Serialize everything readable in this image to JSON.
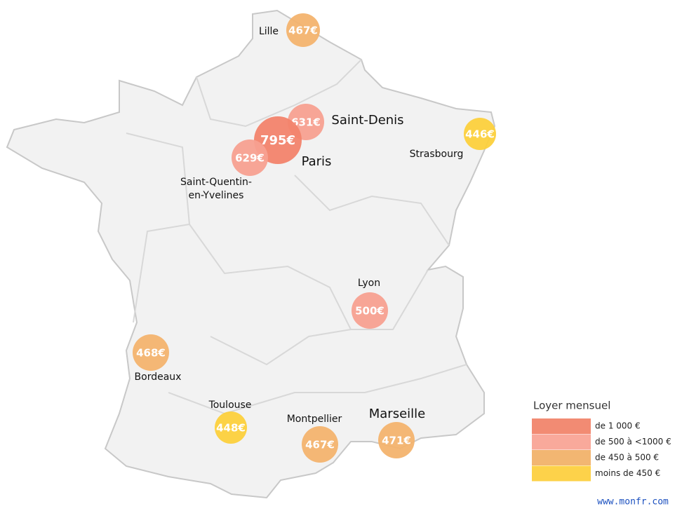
{
  "cities": [
    {
      "name": "Lille",
      "label": "467€",
      "color": "#f3b36e"
    },
    {
      "name": "Saint-Denis",
      "label": "631€",
      "color": "#f7a090"
    },
    {
      "name": "Paris",
      "label": "795€",
      "color": "#f2836b"
    },
    {
      "name": [
        "Saint-Quentin-",
        "en-Yvelines"
      ],
      "label": "629€",
      "color": "#f7a090"
    },
    {
      "name": "Strasbourg",
      "label": "446€",
      "color": "#fcd03c"
    },
    {
      "name": "Lyon",
      "label": "500€",
      "color": "#f7a090"
    },
    {
      "name": "Bordeaux",
      "label": "468€",
      "color": "#f3b36e"
    },
    {
      "name": "Toulouse",
      "label": "448€",
      "color": "#fcd03c"
    },
    {
      "name": "Montpellier",
      "label": "467€",
      "color": "#f3b36e"
    },
    {
      "name": "Marseille",
      "label": "471€",
      "color": "#f3b36e"
    }
  ],
  "legend": {
    "title": "Loyer mensuel",
    "items": [
      {
        "label": "de 1 000 €",
        "color": "#f28b73"
      },
      {
        "label": "de 500 à  <1000 €",
        "color": "#f9a99b"
      },
      {
        "label": "de 450 à 500 €",
        "color": "#f2b672"
      },
      {
        "label": "moins de 450 €",
        "color": "#fdd24a"
      }
    ]
  },
  "footer": "www.monfr.com"
}
